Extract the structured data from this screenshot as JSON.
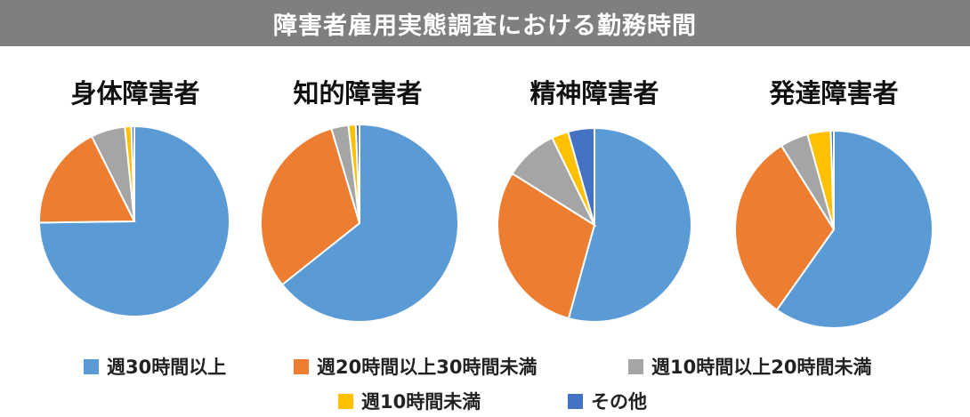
{
  "header": {
    "title": "障害者雇用実態調査における勤務時間"
  },
  "chart_data": [
    {
      "type": "pie",
      "title": "身体障害者",
      "categories": [
        "週30時間以上",
        "週20時間以上30時間未満",
        "週10時間以上20時間未満",
        "週10時間未満",
        "その他"
      ],
      "values": [
        74.8,
        17.8,
        5.8,
        1.1,
        0.5
      ]
    },
    {
      "type": "pie",
      "title": "知的障害者",
      "categories": [
        "週30時間以上",
        "週20時間以上30時間未満",
        "週10時間以上20時間未満",
        "週10時間未満",
        "その他"
      ],
      "values": [
        64.3,
        31.1,
        2.8,
        1.2,
        0.6
      ]
    },
    {
      "type": "pie",
      "title": "精神障害者",
      "categories": [
        "週30時間以上",
        "週20時間以上30時間未満",
        "週10時間以上20時間未満",
        "週10時間未満",
        "その他"
      ],
      "values": [
        54.3,
        29.6,
        8.9,
        2.8,
        4.4
      ]
    },
    {
      "type": "pie",
      "title": "発達障害者",
      "categories": [
        "週30時間以上",
        "週20時間以上30時間未満",
        "週10時間以上20時間未満",
        "週10時間未満",
        "その他"
      ],
      "values": [
        59.8,
        31.3,
        4.6,
        3.8,
        0.5
      ]
    }
  ],
  "legend": [
    {
      "label": "週30時間以上",
      "color": "#5b9bd5"
    },
    {
      "label": "週20時間以上30時間未満",
      "color": "#ed7d31"
    },
    {
      "label": "週10時間以上20時間未満",
      "color": "#a5a5a5"
    },
    {
      "label": "週10時間未満",
      "color": "#ffc000"
    },
    {
      "label": "その他",
      "color": "#4472c4"
    }
  ]
}
